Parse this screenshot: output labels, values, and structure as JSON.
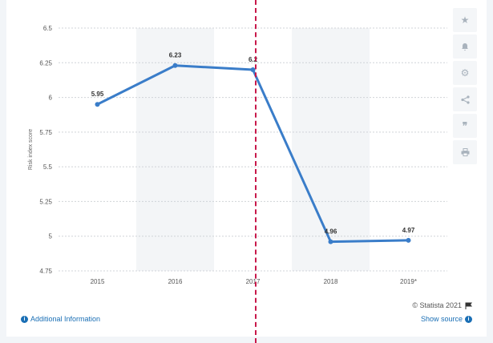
{
  "chart_data": {
    "type": "line",
    "title": "",
    "xlabel": "",
    "ylabel": "Risk index score",
    "categories": [
      "2015",
      "2016",
      "2017",
      "2018",
      "2019*"
    ],
    "series": [
      {
        "values": [
          5.95,
          6.23,
          6.2,
          4.96,
          4.97
        ],
        "labels": [
          "5.95",
          "6.23",
          "6.2",
          "4.96",
          "4.97"
        ]
      }
    ],
    "ylim": [
      4.75,
      6.5
    ],
    "yticks": [
      "4.75",
      "5",
      "5.25",
      "5.5",
      "5.75",
      "6",
      "6.25",
      "6.5"
    ],
    "grid": true,
    "line_color": "#3a7dc9",
    "band_color": "#f3f5f7",
    "marker_color": "#c8184a"
  },
  "toolbar": {
    "icons": [
      "star-icon",
      "bell-icon",
      "gear-icon",
      "share-icon",
      "quote-icon",
      "print-icon"
    ]
  },
  "footer": {
    "credit": "© Statista 2021",
    "additional_info": "Additional Information",
    "show_source": "Show source"
  }
}
